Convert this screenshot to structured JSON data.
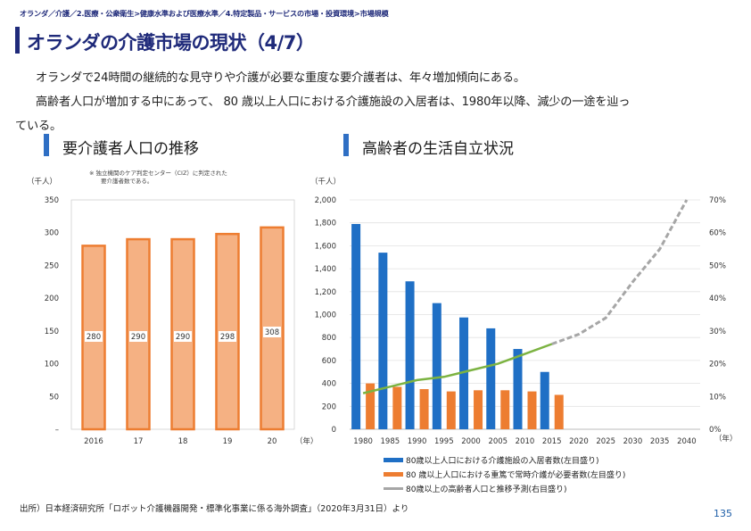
{
  "breadcrumb": "オランダ／介護／2.医療・公衆衛生>健康水準および医療水準／4.特定製品・サービスの市場・投資環境>市場規模",
  "title": "オランダの介護市場の現状（4/7）",
  "paragraph": {
    "line1": "オランダで24時間の継続的な見守りや介護が必要な重度な要介護者は、年々増加傾向にある。",
    "line2": "高齢者人口が増加する中にあって、 80 歳以上人口における介護施設の入居者は、1980年以降、減少の一途を辿っ",
    "line3": "ている。"
  },
  "left_section_title": "要介護者人口の推移",
  "right_section_title": "高齢者の生活自立状況",
  "footnote_line1": "※ 独立機関のケア判定センター（CIZ）に判定された",
  "footnote_line2": "要介護者数である。",
  "source": "出所）日本経済研究所「ロボット介護機器開発・標準化事業に係る海外調査」（2020年3月31日）より",
  "page_number": "135",
  "colors": {
    "navy": "#1f2a7a",
    "section_accent": "#2f6fc4",
    "bar_fill": "#f5b183",
    "bar_border": "#ed7d31",
    "blue_bar": "#1f6fc5",
    "orange_bar": "#ed7d31",
    "green_line": "#7cb342",
    "gray_dash": "#a6a6a6"
  },
  "chart_data": [
    {
      "type": "bar",
      "title": "要介護者人口の推移",
      "unit_label": "（千人）",
      "x_unit_label": "（年）",
      "categories": [
        "2016",
        "17",
        "18",
        "19",
        "20"
      ],
      "values": [
        280,
        290,
        290,
        298,
        308
      ],
      "value_labels": [
        "280",
        "290",
        "290",
        "298",
        "308"
      ],
      "ylim": [
        0,
        350
      ],
      "y_ticks": [
        0,
        50,
        100,
        150,
        200,
        250,
        300,
        350
      ],
      "y_tick_labels": [
        "–",
        "50",
        "100",
        "150",
        "200",
        "250",
        "300",
        "350"
      ]
    },
    {
      "type": "bar+line",
      "title": "高齢者の生活自立状況",
      "unit_label": "（千人）",
      "x_unit_label": "（年）",
      "categories": [
        "1980",
        "1985",
        "1990",
        "1995",
        "2000",
        "2005",
        "2010",
        "2015",
        "2020",
        "2025",
        "2030",
        "2035",
        "2040"
      ],
      "ylim_left": [
        0,
        2000
      ],
      "y_ticks_left": [
        "0",
        "200",
        "400",
        "600",
        "800",
        "1,000",
        "1,200",
        "1,400",
        "1,600",
        "1,800",
        "2,000"
      ],
      "ylim_right": [
        0,
        70
      ],
      "y_ticks_right": [
        "0%",
        "10%",
        "20%",
        "30%",
        "40%",
        "50%",
        "60%",
        "70%"
      ],
      "series": [
        {
          "name": "80歳以上人口における介護施設の入居者数(左目盛り)",
          "kind": "bar",
          "axis": "left",
          "values": [
            1790,
            1540,
            1290,
            1100,
            975,
            880,
            700,
            500,
            null,
            null,
            null,
            null,
            null
          ]
        },
        {
          "name": "80 歳以上人口における重篤で常時介護が必要者数(左目盛り)",
          "kind": "bar",
          "axis": "left",
          "values": [
            400,
            370,
            350,
            330,
            340,
            340,
            330,
            300,
            null,
            null,
            null,
            null,
            null
          ]
        },
        {
          "name": "80歳以上の高齢者人口(右目盛り)",
          "kind": "line",
          "axis": "right",
          "values": [
            11,
            13,
            15,
            16,
            18,
            20,
            23,
            26,
            null,
            null,
            null,
            null,
            null
          ]
        },
        {
          "name": "推移予測(右目盛り)",
          "kind": "dashed-line",
          "axis": "right",
          "values": [
            null,
            null,
            null,
            null,
            null,
            null,
            null,
            26,
            29,
            34,
            45,
            55,
            70
          ]
        }
      ],
      "legend": [
        "80歳以上人口における介護施設の入居者数(左目盛り)",
        "80 歳以上人口における重篤で常時介護が必要者数(左目盛り)",
        "80歳以上の高齢者人口と推移予測(右目盛り)"
      ]
    }
  ]
}
